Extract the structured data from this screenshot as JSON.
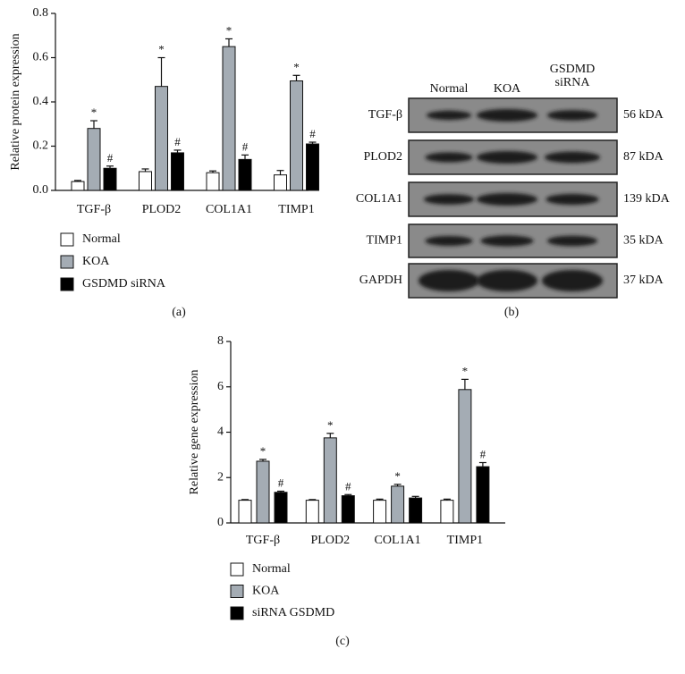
{
  "chart_data": [
    {
      "type": "bar",
      "panel": "(a)",
      "ylabel": "Relative protein expression",
      "categories": [
        "TGF-β",
        "PLOD2",
        "COL1A1",
        "TIMP1"
      ],
      "ylim": [
        0,
        0.8
      ],
      "yticks": [
        {
          "value": 0,
          "label": "0.0"
        },
        0.2,
        0.4,
        0.6,
        0.8
      ],
      "series": [
        {
          "name": "Normal",
          "color": "#ffffff",
          "values": [
            0.04,
            0.085,
            0.08,
            0.07
          ],
          "errors": [
            0.005,
            0.012,
            0.008,
            0.02
          ],
          "labels": [
            null,
            null,
            null,
            null
          ]
        },
        {
          "name": "KOA",
          "color": "#a4acb4",
          "values": [
            0.28,
            0.47,
            0.65,
            0.495
          ],
          "errors": [
            0.035,
            0.13,
            0.035,
            0.025
          ],
          "labels": [
            "*",
            "*",
            "*",
            "*"
          ]
        },
        {
          "name": "GSDMD siRNA",
          "color": "#000000",
          "values": [
            0.1,
            0.17,
            0.14,
            0.21
          ],
          "errors": [
            0.01,
            0.012,
            0.02,
            0.008
          ],
          "labels": [
            "#",
            "#",
            "#",
            "#"
          ]
        }
      ]
    },
    {
      "type": "bar",
      "panel": "(c)",
      "ylabel": "Relative gene expression",
      "categories": [
        "TGF-β",
        "PLOD2",
        "COL1A1",
        "TIMP1"
      ],
      "ylim": [
        0,
        8
      ],
      "yticks": [
        0,
        2,
        4,
        6,
        8
      ],
      "series": [
        {
          "name": "Normal",
          "color": "#ffffff",
          "values": [
            1.0,
            1.0,
            1.0,
            1.0
          ],
          "errors": [
            0.03,
            0.03,
            0.05,
            0.05
          ],
          "labels": [
            null,
            null,
            null,
            null
          ]
        },
        {
          "name": "KOA",
          "color": "#a4acb4",
          "values": [
            2.72,
            3.75,
            1.62,
            5.88
          ],
          "errors": [
            0.08,
            0.2,
            0.08,
            0.45
          ],
          "labels": [
            "*",
            "*",
            "*",
            "*"
          ]
        },
        {
          "name": "siRNA GSDMD",
          "color": "#000000",
          "values": [
            1.35,
            1.2,
            1.1,
            2.48
          ],
          "errors": [
            0.05,
            0.05,
            0.07,
            0.18
          ],
          "labels": [
            "#",
            "#",
            null,
            "#"
          ]
        }
      ]
    }
  ],
  "blot": {
    "panel": "(b)",
    "columns": [
      "Normal",
      "KOA",
      [
        "GSDMD",
        "siRNA"
      ]
    ],
    "rows": [
      {
        "protein": "TGF-β",
        "size": "56 kDA"
      },
      {
        "protein": "PLOD2",
        "size": "87 kDA"
      },
      {
        "protein": "COL1A1",
        "size": "139 kDA"
      },
      {
        "protein": "TIMP1",
        "size": "35 kDA"
      },
      {
        "protein": "GAPDH",
        "size": "37 kDA"
      }
    ]
  }
}
